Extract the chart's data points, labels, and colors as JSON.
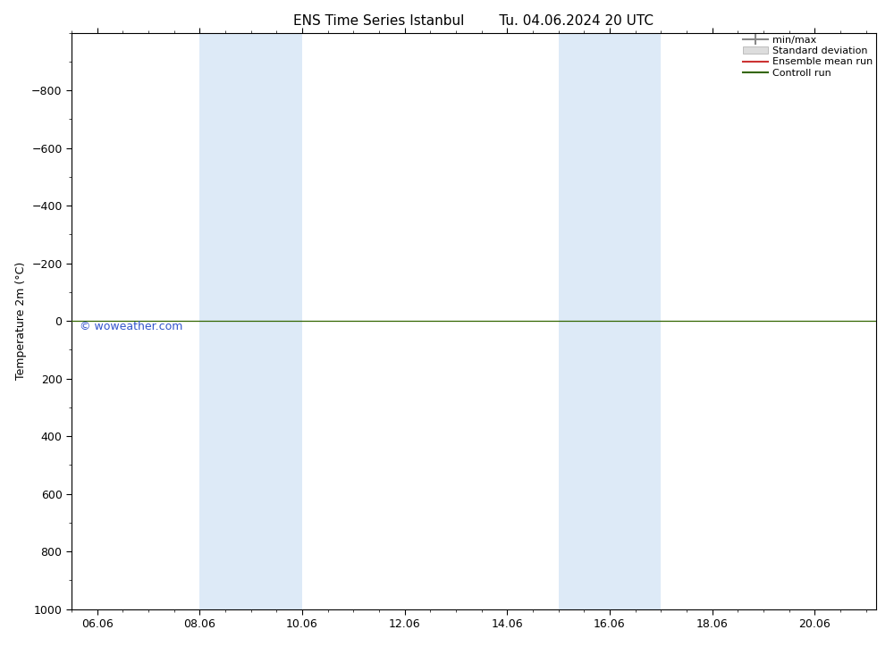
{
  "title_left": "ENS Time Series Istanbul",
  "title_right": "Tu. 04.06.2024 20 UTC",
  "ylabel": "Temperature 2m (°C)",
  "xlabel": "",
  "background_color": "#ffffff",
  "plot_bg_color": "#ffffff",
  "y_min": -1000,
  "y_max": 1000,
  "y_ticks": [
    -800,
    -600,
    -400,
    -200,
    0,
    200,
    400,
    600,
    800,
    1000
  ],
  "x_min": 5.5,
  "x_max": 21.2,
  "x_ticks": [
    6.0,
    8.0,
    10.0,
    12.0,
    14.0,
    16.0,
    18.0,
    20.0
  ],
  "x_tick_labels": [
    "06.06",
    "08.06",
    "10.06",
    "12.06",
    "14.06",
    "16.06",
    "18.06",
    "20.06"
  ],
  "shaded_bands": [
    {
      "x_start": 8.0,
      "x_end": 10.0,
      "color": "#ddeaf7",
      "alpha": 1.0
    },
    {
      "x_start": 15.0,
      "x_end": 17.0,
      "color": "#ddeaf7",
      "alpha": 1.0
    }
  ],
  "zero_line_y": 0,
  "zero_line_color": "#336600",
  "watermark": "© woweather.com",
  "watermark_color": "#3355cc",
  "legend_entries": [
    {
      "label": "min/max",
      "color": "#cccccc",
      "type": "hbar"
    },
    {
      "label": "Standard deviation",
      "color": "#dddddd",
      "type": "hbar_fill"
    },
    {
      "label": "Ensemble mean run",
      "color": "#cc3333",
      "type": "line"
    },
    {
      "label": "Controll run",
      "color": "#336600",
      "type": "line"
    }
  ],
  "title_fontsize": 11,
  "tick_fontsize": 9,
  "ylabel_fontsize": 9,
  "legend_fontsize": 8
}
